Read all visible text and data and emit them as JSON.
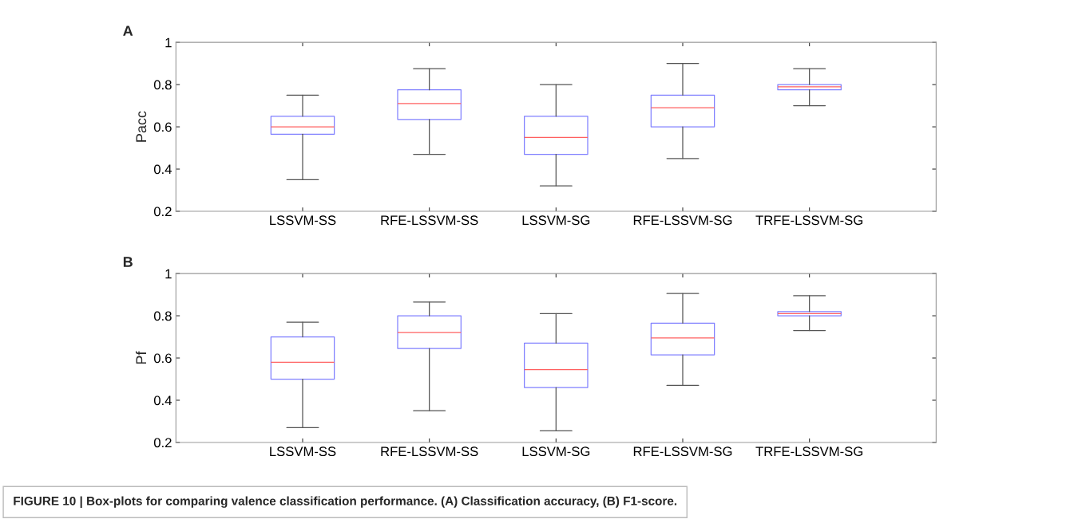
{
  "chart_data": [
    {
      "type": "box",
      "title": "A",
      "ylabel": "Pacc",
      "categories": [
        "LSSVM-SS",
        "RFE-LSSVM-SS",
        "LSSVM-SG",
        "RFE-LSSVM-SG",
        "TRFE-LSSVM-SG"
      ],
      "ylim": [
        0.2,
        1
      ],
      "yticks": [
        0.2,
        0.4,
        0.6,
        0.8,
        1
      ],
      "grid": false,
      "series": [
        {
          "color": "#8080ff",
          "boxes": [
            {
              "low": 0.35,
              "q1": 0.565,
              "median": 0.6,
              "q3": 0.65,
              "high": 0.75
            },
            {
              "low": 0.47,
              "q1": 0.635,
              "median": 0.71,
              "q3": 0.775,
              "high": 0.875
            },
            {
              "low": 0.32,
              "q1": 0.47,
              "median": 0.55,
              "q3": 0.65,
              "high": 0.8
            },
            {
              "low": 0.45,
              "q1": 0.6,
              "median": 0.69,
              "q3": 0.75,
              "high": 0.9
            },
            {
              "low": 0.7,
              "q1": 0.775,
              "median": 0.79,
              "q3": 0.8,
              "high": 0.875
            }
          ]
        }
      ]
    },
    {
      "type": "box",
      "title": "B",
      "ylabel": "Pf",
      "categories": [
        "LSSVM-SS",
        "RFE-LSSVM-SS",
        "LSSVM-SG",
        "RFE-LSSVM-SG",
        "TRFE-LSSVM-SG"
      ],
      "ylim": [
        0.2,
        1
      ],
      "yticks": [
        0.2,
        0.4,
        0.6,
        0.8,
        1
      ],
      "grid": false,
      "series": [
        {
          "color": "#8080ff",
          "boxes": [
            {
              "low": 0.27,
              "q1": 0.5,
              "median": 0.58,
              "q3": 0.7,
              "high": 0.77
            },
            {
              "low": 0.35,
              "q1": 0.645,
              "median": 0.72,
              "q3": 0.8,
              "high": 0.865
            },
            {
              "low": 0.255,
              "q1": 0.46,
              "median": 0.545,
              "q3": 0.67,
              "high": 0.81
            },
            {
              "low": 0.47,
              "q1": 0.615,
              "median": 0.695,
              "q3": 0.765,
              "high": 0.905
            },
            {
              "low": 0.73,
              "q1": 0.8,
              "median": 0.81,
              "q3": 0.82,
              "high": 0.895
            }
          ]
        }
      ],
      "annotations": [
        "FIGURE 10 | Box-plots for comparing valence classification performance. (A) Classification accuracy, (B) F1-score."
      ]
    }
  ]
}
